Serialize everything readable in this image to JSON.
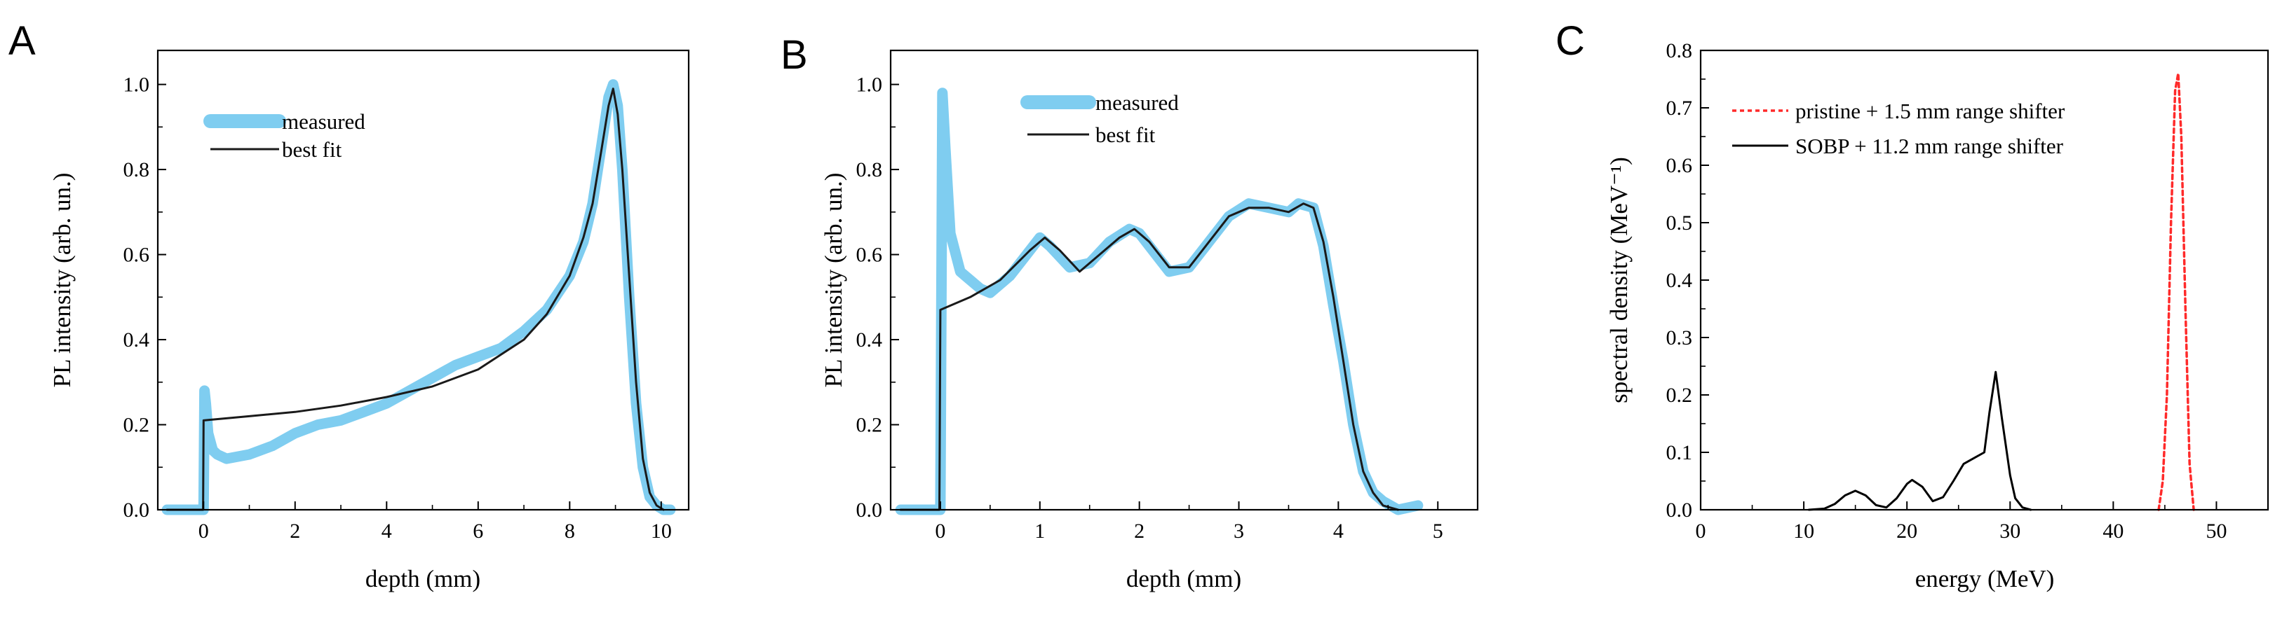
{
  "figure": {
    "panel_labels": [
      "A",
      "B",
      "C"
    ]
  },
  "colors": {
    "measured": "#7fcdf0",
    "best_fit": "#1a1a1a",
    "pristine": "#ff2a2a",
    "sobp": "#000000"
  },
  "chart_data": [
    {
      "type": "line",
      "panel": "A",
      "title": "",
      "xlabel": "depth (mm)",
      "ylabel": "PL intensity (arb. un.)",
      "xlim": [
        -1,
        10.6
      ],
      "ylim": [
        0,
        1.08
      ],
      "xticks": [
        0,
        2,
        4,
        6,
        8,
        10
      ],
      "xtick_labels": [
        "0",
        "2",
        "4",
        "6",
        "8",
        "10"
      ],
      "yticks": [
        0,
        0.2,
        0.4,
        0.6,
        0.8,
        1.0
      ],
      "ytick_labels": [
        "0.0",
        "0.2",
        "0.4",
        "0.6",
        "0.8",
        "1.0"
      ],
      "legend": {
        "position": "top-left"
      },
      "series": [
        {
          "name": "measured",
          "style": "thick",
          "x": [
            -0.8,
            -0.05,
            0.0,
            0.02,
            0.05,
            0.1,
            0.2,
            0.3,
            0.5,
            1.0,
            1.5,
            2.0,
            2.5,
            3.0,
            3.5,
            4.0,
            4.5,
            5.0,
            5.5,
            6.0,
            6.5,
            7.0,
            7.5,
            8.0,
            8.3,
            8.5,
            8.7,
            8.85,
            8.95,
            9.05,
            9.15,
            9.3,
            9.45,
            9.6,
            9.75,
            9.9,
            10.05,
            10.2
          ],
          "y": [
            0.0,
            0.0,
            0.0,
            0.28,
            0.25,
            0.18,
            0.14,
            0.13,
            0.12,
            0.13,
            0.15,
            0.18,
            0.2,
            0.21,
            0.23,
            0.25,
            0.28,
            0.31,
            0.34,
            0.36,
            0.38,
            0.42,
            0.47,
            0.55,
            0.63,
            0.72,
            0.86,
            0.97,
            1.0,
            0.95,
            0.8,
            0.5,
            0.25,
            0.1,
            0.03,
            0.01,
            0.0,
            0.0
          ]
        },
        {
          "name": "best fit",
          "style": "thin",
          "x": [
            -0.8,
            -0.01,
            0.0,
            0.5,
            1.0,
            2.0,
            3.0,
            4.0,
            5.0,
            6.0,
            7.0,
            7.5,
            8.0,
            8.3,
            8.5,
            8.7,
            8.85,
            8.95,
            9.05,
            9.15,
            9.3,
            9.45,
            9.6,
            9.75,
            9.9,
            10.05
          ],
          "y": [
            0.0,
            0.0,
            0.21,
            0.215,
            0.22,
            0.23,
            0.245,
            0.265,
            0.29,
            0.33,
            0.4,
            0.46,
            0.55,
            0.64,
            0.72,
            0.85,
            0.95,
            0.99,
            0.93,
            0.8,
            0.55,
            0.3,
            0.12,
            0.04,
            0.01,
            0.0
          ]
        }
      ]
    },
    {
      "type": "line",
      "panel": "B",
      "title": "",
      "xlabel": "depth (mm)",
      "ylabel": "PL intensity (arb. un.)",
      "xlim": [
        -0.5,
        5.4
      ],
      "ylim": [
        0,
        1.08
      ],
      "xticks": [
        0,
        1,
        2,
        3,
        4,
        5
      ],
      "xtick_labels": [
        "0",
        "1",
        "2",
        "3",
        "4",
        "5"
      ],
      "yticks": [
        0,
        0.2,
        0.4,
        0.6,
        0.8,
        1.0
      ],
      "ytick_labels": [
        "0.0",
        "0.2",
        "0.4",
        "0.6",
        "0.8",
        "1.0"
      ],
      "legend": {
        "position": "top-left"
      },
      "series": [
        {
          "name": "measured",
          "style": "thick",
          "x": [
            -0.4,
            -0.02,
            0.0,
            0.02,
            0.05,
            0.1,
            0.2,
            0.3,
            0.4,
            0.5,
            0.7,
            0.9,
            1.0,
            1.1,
            1.3,
            1.5,
            1.7,
            1.9,
            2.0,
            2.1,
            2.3,
            2.5,
            2.7,
            2.9,
            3.1,
            3.3,
            3.5,
            3.6,
            3.75,
            3.85,
            3.95,
            4.05,
            4.15,
            4.25,
            4.35,
            4.45,
            4.6,
            4.8
          ],
          "y": [
            0.0,
            0.0,
            0.0,
            0.98,
            0.85,
            0.65,
            0.56,
            0.54,
            0.52,
            0.51,
            0.55,
            0.61,
            0.64,
            0.62,
            0.57,
            0.58,
            0.63,
            0.66,
            0.65,
            0.62,
            0.56,
            0.57,
            0.63,
            0.69,
            0.72,
            0.71,
            0.7,
            0.72,
            0.71,
            0.62,
            0.48,
            0.35,
            0.2,
            0.09,
            0.04,
            0.02,
            0.0,
            0.01
          ]
        },
        {
          "name": "best fit",
          "style": "thin",
          "x": [
            -0.4,
            -0.01,
            0.0,
            0.3,
            0.6,
            0.9,
            1.05,
            1.2,
            1.4,
            1.6,
            1.8,
            1.95,
            2.1,
            2.3,
            2.5,
            2.7,
            2.9,
            3.1,
            3.3,
            3.5,
            3.65,
            3.75,
            3.85,
            3.95,
            4.05,
            4.15,
            4.25,
            4.35,
            4.45,
            4.6
          ],
          "y": [
            0.0,
            0.0,
            0.47,
            0.5,
            0.54,
            0.61,
            0.64,
            0.61,
            0.56,
            0.6,
            0.64,
            0.66,
            0.63,
            0.57,
            0.57,
            0.63,
            0.69,
            0.71,
            0.71,
            0.7,
            0.72,
            0.71,
            0.63,
            0.5,
            0.35,
            0.2,
            0.09,
            0.04,
            0.01,
            0.0
          ]
        }
      ]
    },
    {
      "type": "line",
      "panel": "C",
      "title": "",
      "xlabel": "energy (MeV)",
      "ylabel": "spectral density (MeV⁻¹)",
      "xlim": [
        0,
        55
      ],
      "ylim": [
        0,
        0.8
      ],
      "xticks": [
        0,
        10,
        20,
        30,
        40,
        50
      ],
      "xtick_labels": [
        "0",
        "10",
        "20",
        "30",
        "40",
        "50"
      ],
      "yticks": [
        0,
        0.1,
        0.2,
        0.3,
        0.4,
        0.5,
        0.6,
        0.7,
        0.8
      ],
      "ytick_labels": [
        "0.0",
        "0.1",
        "0.2",
        "0.3",
        "0.4",
        "0.5",
        "0.6",
        "0.7",
        "0.8"
      ],
      "legend": {
        "position": "top-right"
      },
      "series": [
        {
          "name": "pristine + 1.5 mm range shifter",
          "style": "dashed",
          "x": [
            44.4,
            44.8,
            45.2,
            45.6,
            46.0,
            46.3,
            46.6,
            47.0,
            47.4,
            47.8
          ],
          "y": [
            0.0,
            0.05,
            0.2,
            0.5,
            0.73,
            0.76,
            0.65,
            0.35,
            0.08,
            0.0
          ]
        },
        {
          "name": "SOBP + 11.2 mm range shifter",
          "style": "solid",
          "x": [
            10.5,
            12.0,
            13.0,
            14.0,
            15.0,
            16.0,
            17.0,
            18.0,
            19.0,
            20.0,
            20.5,
            21.5,
            22.5,
            23.5,
            24.5,
            25.5,
            26.5,
            27.5,
            28.0,
            28.6,
            29.2,
            30.0,
            30.5,
            31.2,
            32.0
          ],
          "y": [
            0.0,
            0.002,
            0.01,
            0.025,
            0.033,
            0.025,
            0.008,
            0.004,
            0.02,
            0.045,
            0.052,
            0.04,
            0.015,
            0.022,
            0.05,
            0.08,
            0.09,
            0.1,
            0.17,
            0.24,
            0.16,
            0.06,
            0.02,
            0.004,
            0.0
          ]
        }
      ]
    }
  ]
}
